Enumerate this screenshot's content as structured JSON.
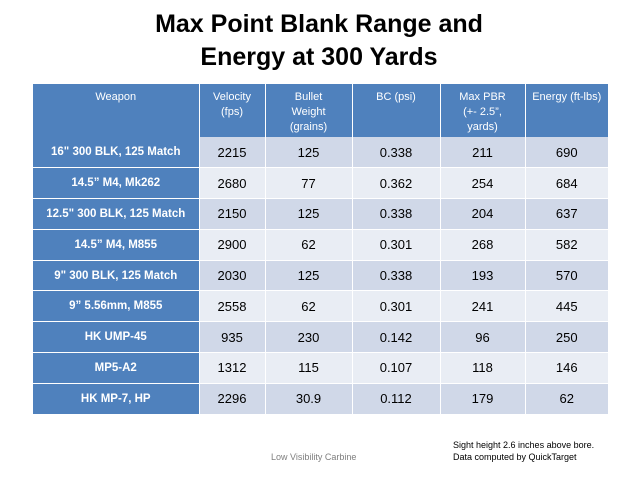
{
  "title": {
    "line1": "Max Point Blank Range and",
    "line2": "Energy at 300 Yards"
  },
  "table": {
    "headers": [
      "Weapon",
      "Velocity\n(fps)",
      "Bullet\nWeight\n(grains)",
      "BC (psi)",
      "Max PBR\n(+- 2.5”,\nyards)",
      "Energy (ft-lbs)"
    ],
    "rows": [
      [
        "16\" 300 BLK, 125 Match",
        "2215",
        "125",
        "0.338",
        "211",
        "690"
      ],
      [
        "14.5” M4, Mk262",
        "2680",
        "77",
        "0.362",
        "254",
        "684"
      ],
      [
        "12.5\" 300 BLK, 125 Match",
        "2150",
        "125",
        "0.338",
        "204",
        "637"
      ],
      [
        "14.5” M4, M855",
        "2900",
        "62",
        "0.301",
        "268",
        "582"
      ],
      [
        "9\" 300 BLK, 125 Match",
        "2030",
        "125",
        "0.338",
        "193",
        "570"
      ],
      [
        "9” 5.56mm, M855",
        "2558",
        "62",
        "0.301",
        "241",
        "445"
      ],
      [
        "HK UMP-45",
        "935",
        "230",
        "0.142",
        "96",
        "250"
      ],
      [
        "MP5-A2",
        "1312",
        "115",
        "0.107",
        "118",
        "146"
      ],
      [
        "HK MP-7, HP",
        "2296",
        "30.9",
        "0.112",
        "179",
        "62"
      ]
    ]
  },
  "footer": {
    "center": "Low Visibility Carbine",
    "note_line1": "Sight height 2.6 inches above bore.",
    "note_line2": "Data computed by QuickTarget"
  },
  "colors": {
    "header_bg": "#4f81bd",
    "row_odd": "#d0d8e8",
    "row_even": "#e9edf4"
  }
}
